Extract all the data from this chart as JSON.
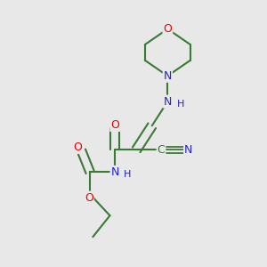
{
  "bg_color": "#e8e8e8",
  "bond_color": "#3a7a35",
  "atom_colors": {
    "O": "#ee0000",
    "N": "#2222cc",
    "C": "#3a7a35",
    "H": "#2222cc"
  },
  "fig_size": [
    3.0,
    3.0
  ],
  "dpi": 100
}
